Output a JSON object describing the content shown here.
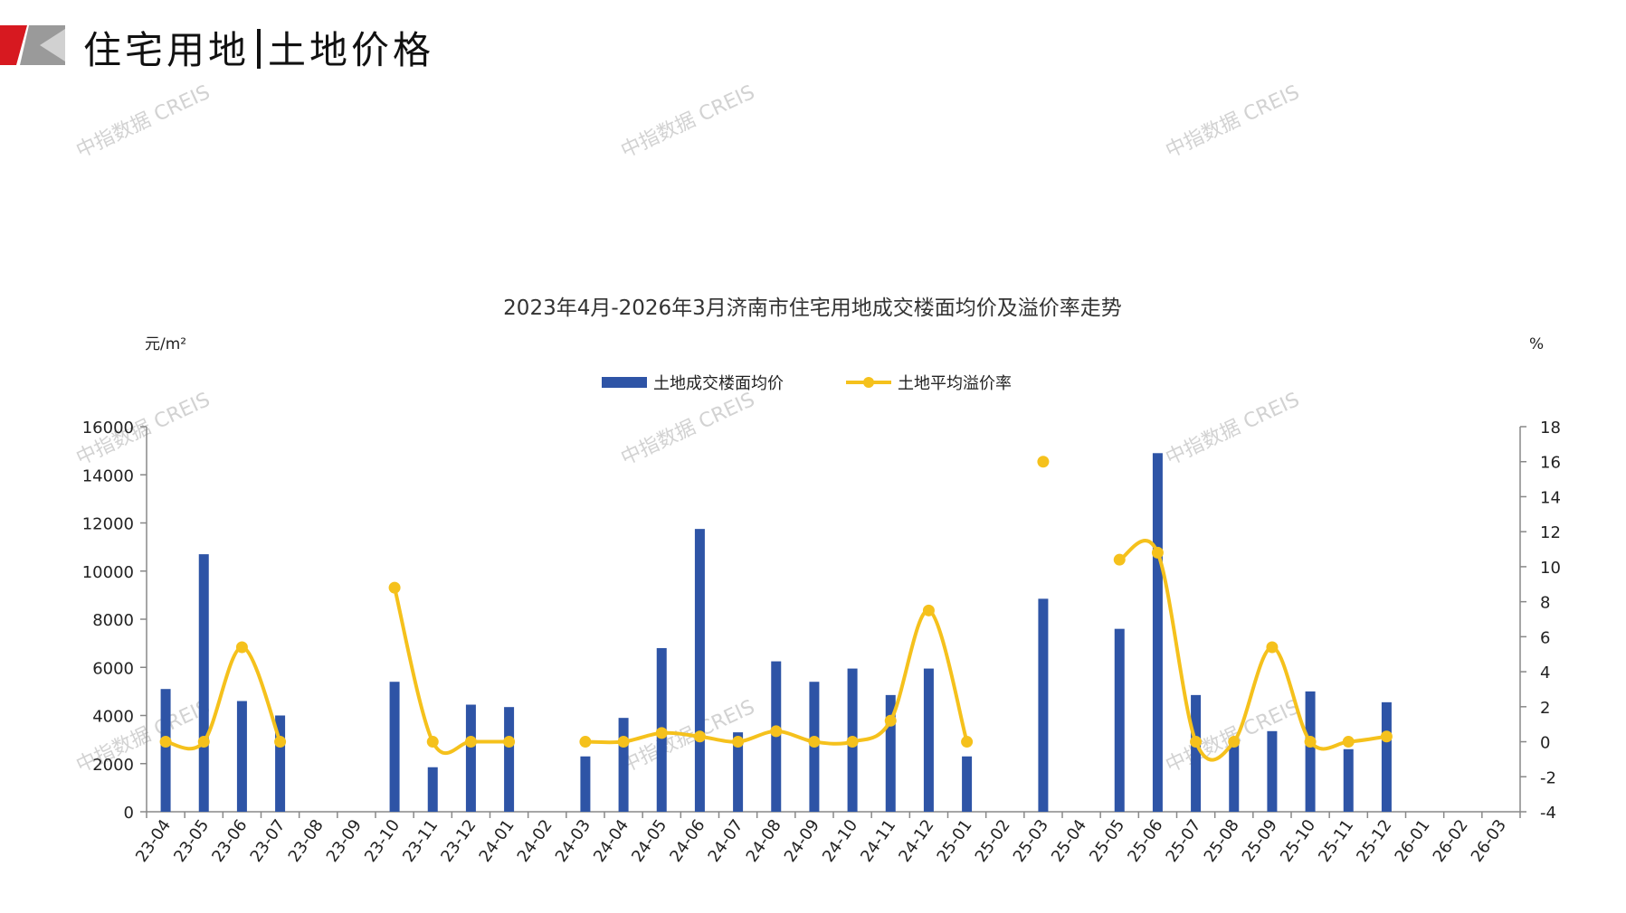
{
  "slide": {
    "title_left": "住宅用地",
    "title_right": "土地价格",
    "watermark": "中指数据 CREIS"
  },
  "colors": {
    "bar": "#2E54A6",
    "line": "#F5C11C",
    "logo_red": "#D71920",
    "logo_gray": "#9A9A9A",
    "axis": "#888888"
  },
  "chart_data": {
    "type": "bar",
    "title": "2023年4月-2026年3月济南市住宅用地成交楼面均价及溢价率走势",
    "y_left_unit": "元/m²",
    "y_right_unit": "%",
    "y_left_range": [
      0,
      16000
    ],
    "y_left_ticks": [
      "0",
      "2000",
      "4000",
      "6000",
      "8000",
      "10000",
      "12000",
      "14000",
      "16000"
    ],
    "y_right_range": [
      -4,
      18
    ],
    "y_right_ticks": [
      "-4",
      "-2",
      "0",
      "2",
      "4",
      "6",
      "8",
      "10",
      "12",
      "14",
      "16",
      "18"
    ],
    "legend_position": "top-center",
    "categories": [
      "23-04",
      "23-05",
      "23-06",
      "23-07",
      "23-08",
      "23-09",
      "23-10",
      "23-11",
      "23-12",
      "24-01",
      "24-02",
      "24-03",
      "24-04",
      "24-05",
      "24-06",
      "24-07",
      "24-08",
      "24-09",
      "24-10",
      "24-11",
      "24-12",
      "25-01",
      "25-02",
      "25-03",
      "25-04",
      "25-05",
      "25-06",
      "25-07",
      "25-08",
      "25-09",
      "25-10",
      "25-11",
      "25-12",
      "26-01",
      "26-02",
      "26-03"
    ],
    "series": [
      {
        "name": "土地成交楼面均价",
        "type": "bar",
        "axis": "left",
        "values": [
          5100,
          10700,
          4600,
          4000,
          null,
          null,
          5400,
          1850,
          4450,
          4350,
          null,
          2300,
          3900,
          6800,
          11750,
          3300,
          6250,
          5400,
          5950,
          4850,
          5950,
          2300,
          null,
          8850,
          null,
          7600,
          14900,
          4850,
          2800,
          3350,
          5000,
          2600,
          4550,
          null,
          null,
          null
        ]
      },
      {
        "name": "土地平均溢价率",
        "type": "line",
        "axis": "right",
        "smooth": true,
        "values": [
          0,
          0,
          5.4,
          0,
          null,
          null,
          8.8,
          0,
          0,
          0,
          null,
          0,
          0,
          0.5,
          0.3,
          0,
          0.6,
          0,
          0,
          1.2,
          7.5,
          0,
          null,
          16,
          null,
          10.4,
          10.8,
          0,
          0,
          5.4,
          0,
          0,
          0.3,
          null,
          null,
          null
        ]
      }
    ]
  }
}
